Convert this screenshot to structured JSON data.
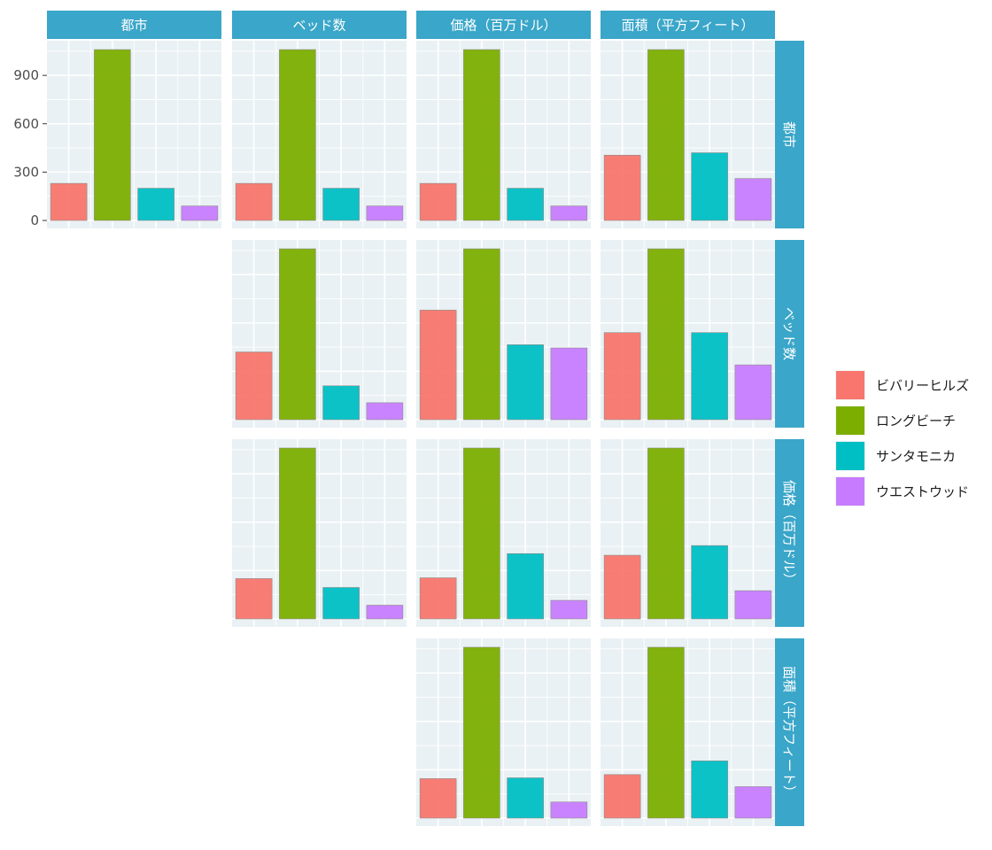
{
  "chart_data": {
    "type": "bar",
    "variables": [
      "都市",
      "ベッド数",
      "価格（百万ドル）",
      "面積（平方フィート）"
    ],
    "categories": [
      "ビバリーヒルズ",
      "ロングビーチ",
      "サンタモニカ",
      "ウエストウッド"
    ],
    "ylim": [
      0,
      1060
    ],
    "y_ticks": [
      "0",
      "300",
      "600",
      "900"
    ],
    "y_tick_values": [
      0,
      300,
      600,
      900
    ],
    "grid": true,
    "legend_position": "right",
    "colors": [
      "#F8766D",
      "#7CAE00",
      "#00BFC4",
      "#C77CFF"
    ],
    "panel_background": "#EAF1F4",
    "strip_color": "#3AA6C9",
    "panels": [
      {
        "row": 0,
        "col": 0,
        "values": [
          230,
          1060,
          200,
          90
        ]
      },
      {
        "row": 0,
        "col": 1,
        "values": [
          230,
          1060,
          200,
          90
        ]
      },
      {
        "row": 0,
        "col": 2,
        "values": [
          230,
          1060,
          200,
          90
        ]
      },
      {
        "row": 0,
        "col": 3,
        "values": [
          405,
          1060,
          420,
          260
        ]
      },
      {
        "row": 1,
        "col": 1,
        "values": [
          420,
          1060,
          210,
          105
        ]
      },
      {
        "row": 1,
        "col": 2,
        "values": [
          680,
          1060,
          465,
          445
        ]
      },
      {
        "row": 1,
        "col": 3,
        "values": [
          540,
          1060,
          540,
          340
        ]
      },
      {
        "row": 2,
        "col": 1,
        "values": [
          250,
          1060,
          195,
          85
        ]
      },
      {
        "row": 2,
        "col": 2,
        "values": [
          255,
          1060,
          405,
          115
        ]
      },
      {
        "row": 2,
        "col": 3,
        "values": [
          395,
          1060,
          455,
          175
        ]
      },
      {
        "row": 3,
        "col": 2,
        "values": [
          245,
          1060,
          250,
          100
        ]
      },
      {
        "row": 3,
        "col": 3,
        "values": [
          270,
          1060,
          355,
          195
        ]
      }
    ]
  }
}
